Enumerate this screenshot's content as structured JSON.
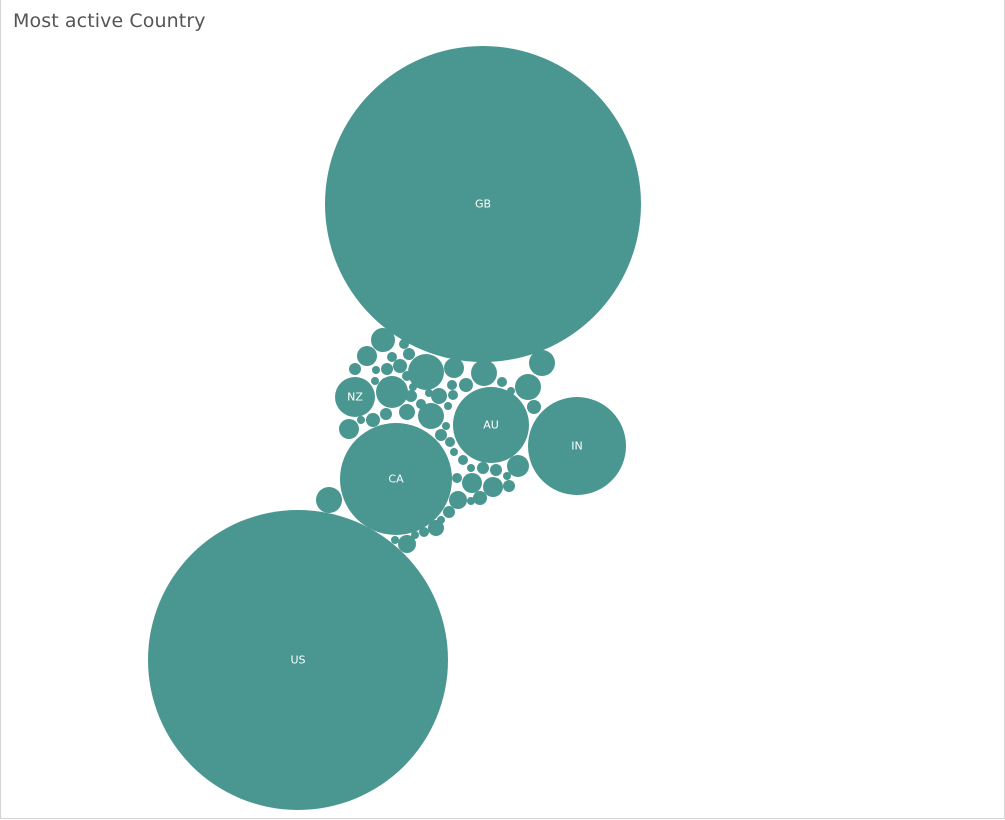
{
  "title": "Most active Country",
  "color": "#4a9690",
  "chart_data": {
    "type": "bubble",
    "labeled_bubbles": [
      {
        "label": "GB"
      },
      {
        "label": "US"
      },
      {
        "label": "IN"
      },
      {
        "label": "CA"
      },
      {
        "label": "AU"
      },
      {
        "label": "NZ"
      }
    ]
  }
}
